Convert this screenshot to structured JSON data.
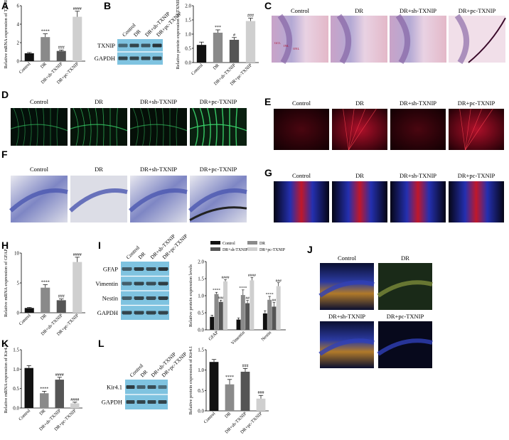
{
  "panels": {
    "A": "A",
    "B": "B",
    "C": "C",
    "D": "D",
    "E": "E",
    "F": "F",
    "G": "G",
    "H": "H",
    "I": "I",
    "J": "J",
    "K": "K",
    "L": "L"
  },
  "groups": [
    "Control",
    "DR",
    "DR+sh-TXNIP",
    "DR+pc-TXNIP"
  ],
  "blots": {
    "B": {
      "rows": [
        "TXNIP",
        "GAPDH"
      ]
    },
    "I": {
      "rows": [
        "GFAP",
        "Vimentin",
        "Nestin",
        "GAPDH"
      ]
    },
    "L": {
      "rows": [
        "Kir4.1",
        "GAPDH"
      ]
    }
  },
  "images": {
    "C_labels": [
      "Control",
      "DR",
      "DR+sh-TXNIP",
      "DR+pc-TXNIP"
    ],
    "C_inset": [
      "GCL",
      "INL",
      "ONL"
    ],
    "J_labels": [
      "Control",
      "DR",
      "DR+sh-TXNIP",
      "DR+pc-TXNIP"
    ]
  },
  "chart_data": [
    {
      "id": "A",
      "type": "bar",
      "ylabel": "Relative mRNA expression of TXNIP",
      "categories": [
        "Control",
        "DR",
        "DR+sh-TXNIP",
        "DR+pc-TXNIP"
      ],
      "values": [
        0.85,
        2.6,
        1.1,
        4.8
      ],
      "errors": [
        0.08,
        0.35,
        0.1,
        0.6
      ],
      "ylim": [
        0,
        6
      ],
      "yticks": [
        "0",
        "2",
        "4",
        "6"
      ],
      "annotations": [
        "",
        "****",
        "###",
        "####"
      ],
      "colors": [
        "#111111",
        "#8a8a8a",
        "#555555",
        "#cfcfcf"
      ]
    },
    {
      "id": "B",
      "type": "bar",
      "ylabel": "Relative protein expression of TXNIP",
      "categories": [
        "Control",
        "DR",
        "DR+sh-TXNIP",
        "DR+pc-TXNIP"
      ],
      "values": [
        0.62,
        1.05,
        0.8,
        1.46
      ],
      "errors": [
        0.1,
        0.1,
        0.08,
        0.1
      ],
      "ylim": [
        0,
        2.0
      ],
      "yticks": [
        "0.0",
        "0.5",
        "1.0",
        "1.5",
        "2.0"
      ],
      "annotations": [
        "",
        "***",
        "#",
        "###"
      ],
      "colors": [
        "#111111",
        "#8a8a8a",
        "#555555",
        "#cfcfcf"
      ]
    },
    {
      "id": "H",
      "type": "bar",
      "ylabel": "Relative mRNA expression of GFAP",
      "categories": [
        "Control",
        "DR",
        "DR+sh-TXNIP",
        "DR+pc-TXNIP"
      ],
      "values": [
        0.8,
        4.2,
        2.1,
        8.5
      ],
      "errors": [
        0.1,
        0.5,
        0.2,
        0.8
      ],
      "ylim": [
        0,
        10
      ],
      "yticks": [
        "0",
        "5",
        "10"
      ],
      "annotations": [
        "",
        "****",
        "###",
        "####"
      ],
      "colors": [
        "#111111",
        "#8a8a8a",
        "#555555",
        "#cfcfcf"
      ]
    },
    {
      "id": "I",
      "type": "bar",
      "ylabel": "Relative protein expression levels",
      "categories": [
        "GFAP",
        "Vimentin",
        "Nestin"
      ],
      "legend": [
        "Control",
        "DR",
        "DR+sh-TXNIP",
        "DR+pc-TXNIP"
      ],
      "series": [
        {
          "name": "Control",
          "values": [
            0.38,
            0.3,
            0.48
          ],
          "errors": [
            0.05,
            0.05,
            0.08
          ]
        },
        {
          "name": "DR",
          "values": [
            1.05,
            1.02,
            0.88
          ],
          "errors": [
            0.05,
            0.15,
            0.1
          ]
        },
        {
          "name": "DR+sh-TXNIP",
          "values": [
            0.82,
            0.78,
            0.68
          ],
          "errors": [
            0.05,
            0.08,
            0.12
          ]
        },
        {
          "name": "DR+pc-TXNIP",
          "values": [
            1.42,
            1.45,
            1.28
          ],
          "errors": [
            0.05,
            0.08,
            0.1
          ]
        }
      ],
      "ylim": [
        0,
        2.0
      ],
      "yticks": [
        "0.0",
        "0.5",
        "1.0",
        "1.5",
        "2.0"
      ],
      "annotations": [
        [
          "",
          "****",
          "###",
          "####"
        ],
        [
          "",
          "****",
          "##",
          "####"
        ],
        [
          "",
          "****",
          "##",
          "###"
        ]
      ],
      "colors": [
        "#111111",
        "#8a8a8a",
        "#555555",
        "#cfcfcf"
      ]
    },
    {
      "id": "K",
      "type": "bar",
      "ylabel": "Relative mRNA expression of Kir4.1",
      "categories": [
        "Control",
        "DR",
        "DR+sh-TXNIP",
        "DR+pc-TXNIP"
      ],
      "values": [
        1.03,
        0.38,
        0.73,
        0.12
      ],
      "errors": [
        0.06,
        0.05,
        0.06,
        0.03
      ],
      "ylim": [
        0,
        1.5
      ],
      "yticks": [
        "0.0",
        "0.5",
        "1.0",
        "1.5"
      ],
      "annotations": [
        "",
        "****",
        "####",
        "####"
      ],
      "colors": [
        "#111111",
        "#8a8a8a",
        "#555555",
        "#cfcfcf"
      ]
    },
    {
      "id": "L",
      "type": "bar",
      "ylabel": "Relative protein expression of Kir4.1",
      "categories": [
        "Control",
        "DR",
        "DR+sh-TXNIP",
        "DR+pc-TXNIP"
      ],
      "values": [
        1.2,
        0.65,
        0.96,
        0.3
      ],
      "errors": [
        0.06,
        0.12,
        0.08,
        0.08
      ],
      "ylim": [
        0,
        1.5
      ],
      "yticks": [
        "0.0",
        "0.5",
        "1.0",
        "1.5"
      ],
      "annotations": [
        "",
        "****",
        "###",
        "###"
      ],
      "colors": [
        "#111111",
        "#8a8a8a",
        "#555555",
        "#cfcfcf"
      ]
    }
  ]
}
